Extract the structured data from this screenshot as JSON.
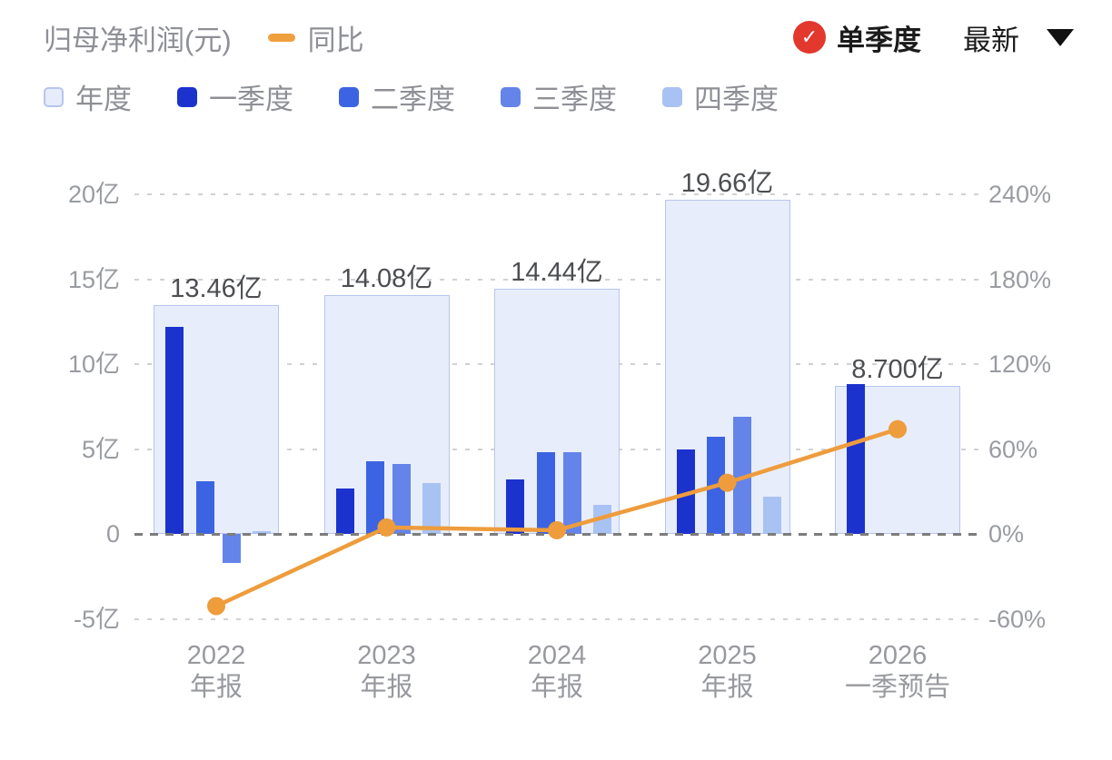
{
  "header": {
    "title": "归母净利润(元)",
    "line_legend": "同比",
    "check_glyph": "✓",
    "toggle_label": "单季度",
    "latest_label": "最新"
  },
  "legend": {
    "items": [
      {
        "label": "年度",
        "color": "#e6ecfa",
        "border": "#b7c6ee"
      },
      {
        "label": "一季度",
        "color": "#1c32cd",
        "border": "#1c32cd"
      },
      {
        "label": "二季度",
        "color": "#3c64e2",
        "border": "#3c64e2"
      },
      {
        "label": "三季度",
        "color": "#6484ea",
        "border": "#6484ea"
      },
      {
        "label": "四季度",
        "color": "#a9c2f4",
        "border": "#a9c2f4"
      }
    ]
  },
  "chart_data": {
    "type": "bar",
    "title": "归母净利润(元)",
    "categories": [
      [
        "2022",
        "年报"
      ],
      [
        "2023",
        "年报"
      ],
      [
        "2024",
        "年报"
      ],
      [
        "2025",
        "年报"
      ],
      [
        "2026",
        "一季预告"
      ]
    ],
    "annual": {
      "name": "年度",
      "values": [
        13.46,
        14.08,
        14.44,
        19.66,
        8.7
      ],
      "labels": [
        "13.46亿",
        "14.08亿",
        "14.44亿",
        "19.66亿",
        "8.700亿"
      ],
      "fill": "#e8edfb",
      "border": "#b7c6ee"
    },
    "series": [
      {
        "name": "一季度",
        "color": "#1c32cd",
        "values": [
          12.2,
          2.7,
          3.2,
          5.0,
          8.8
        ]
      },
      {
        "name": "二季度",
        "color": "#3c64e2",
        "values": [
          3.1,
          4.3,
          4.8,
          5.7,
          null
        ]
      },
      {
        "name": "三季度",
        "color": "#6484ea",
        "values": [
          -1.7,
          4.1,
          4.8,
          6.9,
          null
        ]
      },
      {
        "name": "四季度",
        "color": "#a9c2f4",
        "values": [
          0.15,
          3.0,
          1.7,
          2.2,
          null
        ]
      }
    ],
    "line": {
      "name": "同比",
      "color": "#ee9c3c",
      "unit": "%",
      "values": [
        -51,
        4.6,
        2.6,
        36.2,
        74
      ]
    },
    "left_axis": {
      "unit": "亿",
      "ticks": [
        20,
        15,
        10,
        5,
        0,
        -5
      ],
      "labels": [
        "20亿",
        "15亿",
        "10亿",
        "5亿",
        "0",
        "-5亿"
      ],
      "ylim": [
        -7.5,
        21.5
      ]
    },
    "right_axis": {
      "unit": "%",
      "ticks": [
        240,
        180,
        120,
        60,
        0,
        -60
      ],
      "labels": [
        "240%",
        "180%",
        "120%",
        "60%",
        "0%",
        "-60%"
      ],
      "ylim": [
        -90,
        258
      ]
    },
    "grid": true,
    "legend_position": "top-left"
  },
  "colors": {
    "accent_red": "#e2382e",
    "text_dark": "#1b1b1b",
    "text_gray": "#8e9096",
    "axis_gray": "#999ca1",
    "value_label": "#4c4e52",
    "grid_light": "#d0d1d5",
    "grid_zero": "#7c7c7c"
  }
}
